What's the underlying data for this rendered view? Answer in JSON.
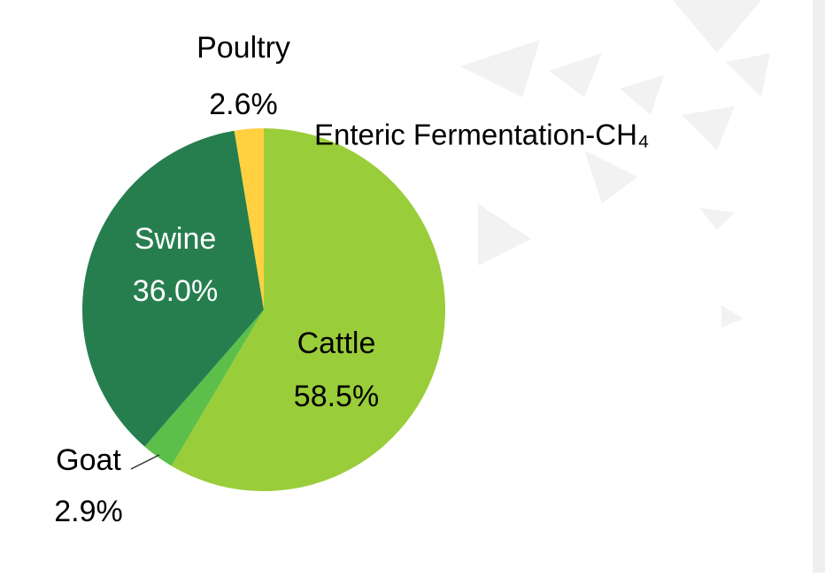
{
  "chart_data": {
    "type": "pie",
    "title": "Enteric Fermentation-CH₄",
    "categories": [
      "Cattle",
      "Goat",
      "Swine",
      "Poultry"
    ],
    "values": [
      58.5,
      2.9,
      36.0,
      2.6
    ],
    "value_labels": [
      "58.5%",
      "2.9%",
      "36.0%",
      "2.6%"
    ],
    "colors": [
      "#9acd3a",
      "#5cbf4a",
      "#267e4e",
      "#ffd040"
    ]
  }
}
